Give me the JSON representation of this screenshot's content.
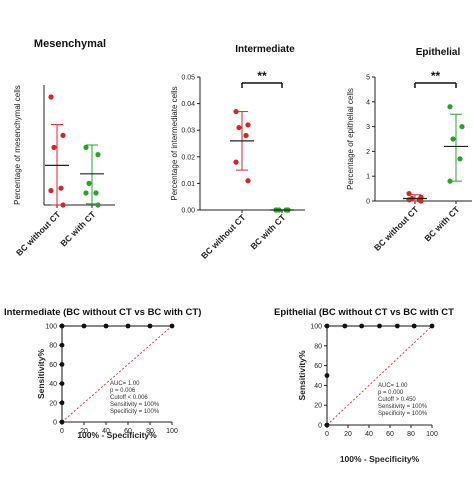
{
  "chart_data": [
    {
      "type": "scatter",
      "title": "Mesenchymal",
      "ylabel": "Percentage of mesenchymal cells",
      "categories": [
        "BC without CT",
        "BC with CT"
      ],
      "ylim": [
        0,
        50
      ],
      "yticks": [],
      "series": [
        {
          "category": "BC without CT",
          "color": "#d62728",
          "values": [
            45,
            29,
            24,
            7,
            6,
            0
          ],
          "mean": 16.5,
          "sd_top": 33.5,
          "sd_bottom": 0
        },
        {
          "category": "BC with CT",
          "color": "#2ca02c",
          "values": [
            24,
            21,
            9,
            5,
            5,
            0
          ],
          "mean": 13,
          "sd_top": 25,
          "sd_bottom": 0.5
        }
      ],
      "significance": ""
    },
    {
      "type": "scatter",
      "title": "Intermediate",
      "ylabel": "Percentage of intermediate cells",
      "categories": [
        "BC without CT",
        "BC with CT"
      ],
      "ylim": [
        0,
        0.05
      ],
      "yticks": [
        "0.00",
        "0.01",
        "0.02",
        "0.03",
        "0.04",
        "0.05"
      ],
      "series": [
        {
          "category": "BC without CT",
          "color": "#d62728",
          "values": [
            0.037,
            0.032,
            0.031,
            0.028,
            0.018,
            0.011
          ],
          "mean": 0.026,
          "sd_top": 0.037,
          "sd_bottom": 0.015
        },
        {
          "category": "BC with CT",
          "color": "#2ca02c",
          "values": [
            0,
            0,
            0,
            0,
            0,
            0
          ],
          "mean": 0,
          "sd_top": 0,
          "sd_bottom": 0
        }
      ],
      "significance": "**"
    },
    {
      "type": "scatter",
      "title": "Epithelial",
      "ylabel": "Percentage of epithelial cells",
      "categories": [
        "BC without CT",
        "BC with CT"
      ],
      "ylim": [
        0,
        5
      ],
      "yticks": [
        "0",
        "1",
        "2",
        "3",
        "4",
        "5"
      ],
      "series": [
        {
          "category": "BC without CT",
          "color": "#d62728",
          "values": [
            0.3,
            0.15,
            0.1,
            0.05,
            0.05,
            0.0
          ],
          "mean": 0.1,
          "sd_top": 0.25,
          "sd_bottom": 0
        },
        {
          "category": "BC with CT",
          "color": "#2ca02c",
          "values": [
            3.8,
            3.0,
            2.5,
            1.7,
            0.8
          ],
          "mean": 2.2,
          "sd_top": 3.5,
          "sd_bottom": 0.8
        }
      ],
      "significance": "**"
    },
    {
      "type": "line",
      "title": "Intermediate (BC without  CT vs BC with CT)",
      "xlabel": "100% - Specificity%",
      "ylabel": "Sensitivity%",
      "xlim": [
        0,
        100
      ],
      "ylim": [
        0,
        100
      ],
      "xticks": [
        "0",
        "20",
        "40",
        "60",
        "80",
        "100"
      ],
      "yticks": [
        "0",
        "20",
        "40",
        "60",
        "80",
        "100"
      ],
      "roc": {
        "x": [
          0,
          0,
          0,
          0,
          0,
          0,
          0,
          20,
          40,
          60,
          80,
          100
        ],
        "y": [
          0,
          20,
          40,
          60,
          80,
          100,
          100,
          100,
          100,
          100,
          100,
          100
        ]
      },
      "reference_line": true,
      "annotations": [
        "AUC= 1.00",
        "p = 0.006",
        "Cutoff < 0.006",
        "Sensitivity = 100%",
        "Specificity = 100%"
      ]
    },
    {
      "type": "line",
      "title": "Epithelial (BC without  CT vs BC with CT",
      "xlabel": "100% - Specificity%",
      "ylabel": "Sensitivity%",
      "xlim": [
        0,
        100
      ],
      "ylim": [
        0,
        100
      ],
      "xticks": [
        "0",
        "20",
        "40",
        "60",
        "80",
        "100"
      ],
      "yticks": [
        "0",
        "20",
        "40",
        "60",
        "80",
        "100"
      ],
      "roc": {
        "x": [
          0,
          0,
          0,
          17,
          33,
          50,
          67,
          83,
          100
        ],
        "y": [
          0,
          50,
          100,
          100,
          100,
          100,
          100,
          100,
          100
        ]
      },
      "reference_line": true,
      "annotations": [
        "AUC= 1.00",
        "p = 0.000",
        "Cutoff > 0.450",
        "Sensitivity = 100%",
        "Specificity = 100%"
      ]
    }
  ]
}
